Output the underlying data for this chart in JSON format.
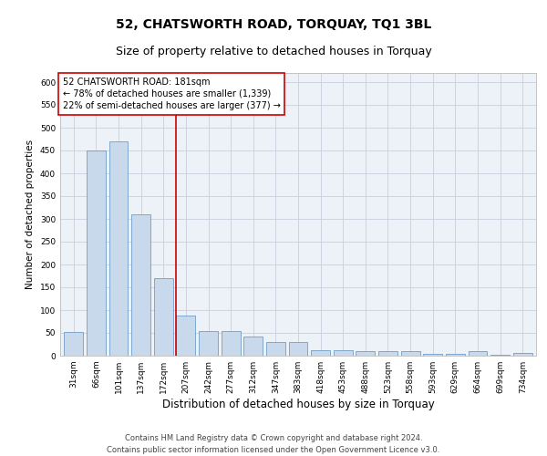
{
  "title": "52, CHATSWORTH ROAD, TORQUAY, TQ1 3BL",
  "subtitle": "Size of property relative to detached houses in Torquay",
  "xlabel": "Distribution of detached houses by size in Torquay",
  "ylabel": "Number of detached properties",
  "categories": [
    "31sqm",
    "66sqm",
    "101sqm",
    "137sqm",
    "172sqm",
    "207sqm",
    "242sqm",
    "277sqm",
    "312sqm",
    "347sqm",
    "383sqm",
    "418sqm",
    "453sqm",
    "488sqm",
    "523sqm",
    "558sqm",
    "593sqm",
    "629sqm",
    "664sqm",
    "699sqm",
    "734sqm"
  ],
  "values": [
    52,
    450,
    470,
    310,
    170,
    88,
    55,
    55,
    42,
    30,
    30,
    13,
    12,
    10,
    10,
    10,
    5,
    5,
    10,
    2,
    6
  ],
  "bar_color": "#c8d9ec",
  "bar_edge_color": "#5a8fbe",
  "grid_color": "#c8d0dc",
  "background_color": "#edf2f8",
  "annotation_text": "52 CHATSWORTH ROAD: 181sqm\n← 78% of detached houses are smaller (1,339)\n22% of semi-detached houses are larger (377) →",
  "annotation_box_color": "#ffffff",
  "annotation_box_edge_color": "#cc0000",
  "vline_x_index": 4.55,
  "vline_color": "#cc0000",
  "ylim": [
    0,
    620
  ],
  "yticks": [
    0,
    50,
    100,
    150,
    200,
    250,
    300,
    350,
    400,
    450,
    500,
    550,
    600
  ],
  "footer_line1": "Contains HM Land Registry data © Crown copyright and database right 2024.",
  "footer_line2": "Contains public sector information licensed under the Open Government Licence v3.0.",
  "title_fontsize": 10,
  "subtitle_fontsize": 9,
  "xlabel_fontsize": 8.5,
  "ylabel_fontsize": 7.5,
  "tick_fontsize": 6.5,
  "annotation_fontsize": 7,
  "footer_fontsize": 6
}
